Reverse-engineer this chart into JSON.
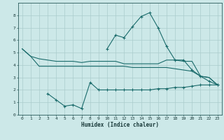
{
  "background_color": "#cce8e8",
  "grid_color": "#aacccc",
  "line_color": "#1a6b6b",
  "xlabel": "Humidex (Indice chaleur)",
  "xlim": [
    -0.5,
    23.5
  ],
  "ylim": [
    0,
    9
  ],
  "xticks": [
    0,
    1,
    2,
    3,
    4,
    5,
    6,
    7,
    8,
    9,
    10,
    11,
    12,
    13,
    14,
    15,
    16,
    17,
    18,
    19,
    20,
    21,
    22,
    23
  ],
  "yticks": [
    0,
    1,
    2,
    3,
    4,
    5,
    6,
    7,
    8
  ],
  "tick_fontsize": 4.5,
  "xlabel_fontsize": 5.5,
  "series": [
    {
      "x": [
        0,
        1,
        2,
        3,
        4,
        5,
        6,
        7,
        8,
        9,
        10,
        11,
        12,
        13,
        14,
        15,
        16,
        17,
        18,
        19,
        20,
        21,
        22,
        23
      ],
      "y": [
        5.3,
        4.7,
        4.5,
        4.4,
        4.3,
        4.3,
        4.3,
        4.2,
        4.3,
        4.3,
        4.3,
        4.3,
        4.1,
        4.1,
        4.1,
        4.1,
        4.1,
        4.4,
        4.4,
        4.3,
        4.3,
        3.1,
        3.0,
        2.4
      ],
      "marker": false
    },
    {
      "x": [
        0,
        1,
        2,
        3,
        4,
        5,
        6,
        7,
        8,
        9,
        10,
        11,
        12,
        13,
        14,
        15,
        16,
        17,
        18,
        19,
        20,
        21,
        22,
        23
      ],
      "y": [
        5.3,
        4.7,
        3.9,
        3.9,
        3.9,
        3.9,
        3.9,
        3.9,
        3.9,
        3.9,
        3.9,
        3.9,
        3.9,
        3.8,
        3.8,
        3.8,
        3.8,
        3.8,
        3.7,
        3.6,
        3.5,
        3.1,
        3.0,
        2.4
      ],
      "marker": false
    },
    {
      "x": [
        3,
        4,
        5,
        6,
        7,
        8,
        9,
        10,
        11,
        12,
        13,
        14,
        15,
        16,
        17,
        18,
        19,
        20,
        21,
        22,
        23
      ],
      "y": [
        1.7,
        1.2,
        0.7,
        0.8,
        0.5,
        2.6,
        2.0,
        2.0,
        2.0,
        2.0,
        2.0,
        2.0,
        2.0,
        2.1,
        2.1,
        2.2,
        2.2,
        2.3,
        2.4,
        2.4,
        2.4
      ],
      "marker": true
    },
    {
      "x": [
        10,
        11,
        12,
        13,
        14,
        15,
        16,
        17,
        18,
        19,
        20,
        21,
        22,
        23
      ],
      "y": [
        5.3,
        6.4,
        6.2,
        7.1,
        7.9,
        8.2,
        7.0,
        5.5,
        4.4,
        4.4,
        3.6,
        3.1,
        2.7,
        2.4
      ],
      "marker": true
    }
  ]
}
